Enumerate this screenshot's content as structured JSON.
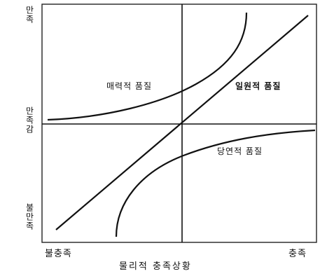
{
  "axes": {
    "y_top": "만족",
    "y_middle": "만족감",
    "y_bottom": "불만족",
    "x_left": "불충족",
    "x_right": "충족",
    "x_title": "물리적 충족상황"
  },
  "curves": {
    "attractive": "매력적 품질",
    "one_dimensional": "일원적 품질",
    "must_be": "당연적 품질"
  },
  "colors": {
    "line": "#111111",
    "frame": "#222222"
  }
}
